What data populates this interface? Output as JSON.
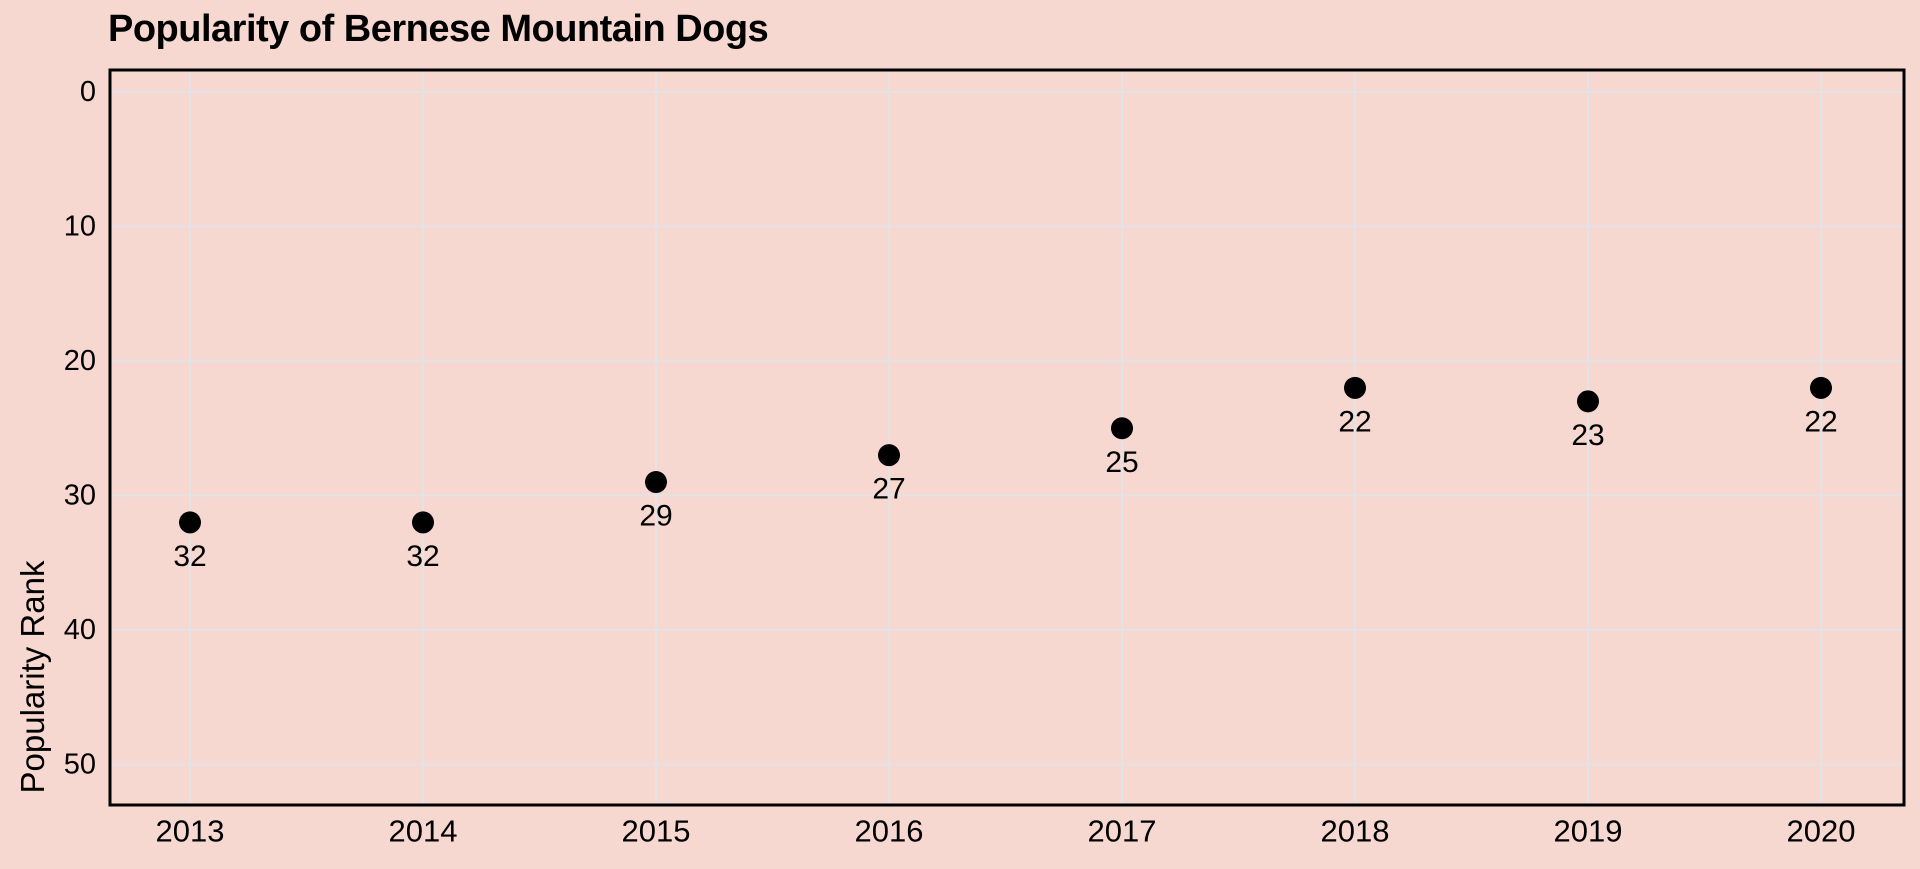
{
  "chart_data": {
    "type": "scatter",
    "title": "Popularity of Bernese Mountain Dogs",
    "ylabel": "Popularity Rank",
    "xlabel": "",
    "categories": [
      "2013",
      "2014",
      "2015",
      "2016",
      "2017",
      "2018",
      "2019",
      "2020"
    ],
    "values": [
      32,
      32,
      29,
      27,
      25,
      22,
      23,
      22
    ],
    "point_labels": [
      "32",
      "32",
      "29",
      "27",
      "25",
      "22",
      "23",
      "22"
    ],
    "y_ticks": [
      0,
      10,
      20,
      30,
      40,
      50
    ],
    "y_axis_inverted": true,
    "ylim": [
      -1.6,
      53.0
    ],
    "grid": true,
    "legend": "none",
    "colors": {
      "background": "#f6d8d0",
      "grid": "#e2e2e7",
      "border": "#000000",
      "point": "#000000",
      "text": "#000000"
    }
  }
}
